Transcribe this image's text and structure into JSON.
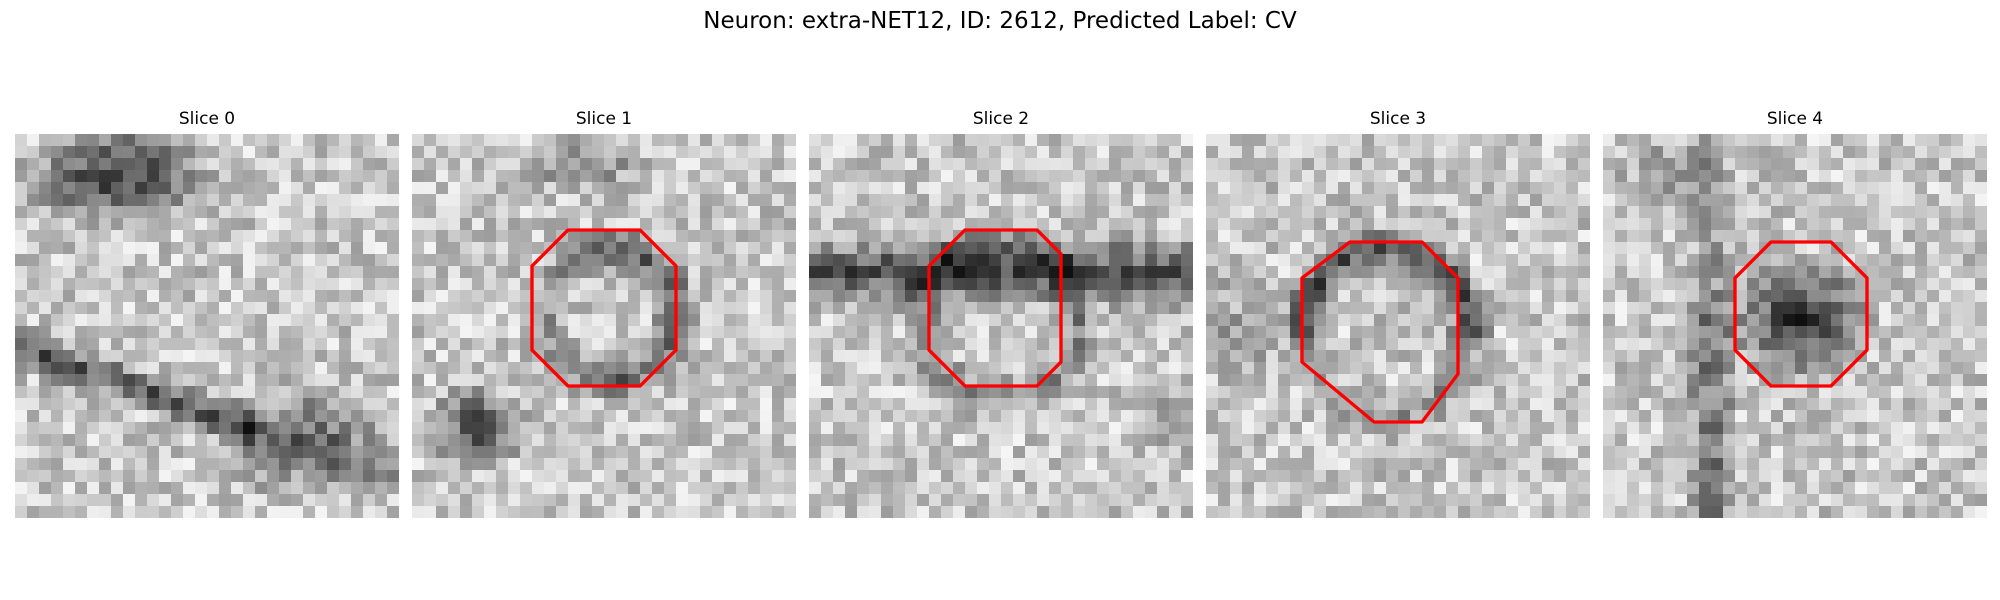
{
  "figure": {
    "title": "Neuron: extra-NET12, ID: 2612, Predicted Label: CV",
    "outline_color": "#ff0000",
    "slices": [
      {
        "label": "Slice 0",
        "outline": null
      },
      {
        "label": "Slice 1",
        "outline": [
          [
            13,
            8
          ],
          [
            19,
            8
          ],
          [
            22,
            11
          ],
          [
            22,
            18
          ],
          [
            19,
            21
          ],
          [
            13,
            21
          ],
          [
            10,
            18
          ],
          [
            10,
            11
          ]
        ]
      },
      {
        "label": "Slice 2",
        "outline": [
          [
            13,
            8
          ],
          [
            19,
            8
          ],
          [
            21,
            10
          ],
          [
            21,
            19
          ],
          [
            19,
            21
          ],
          [
            13,
            21
          ],
          [
            10,
            18
          ],
          [
            10,
            11
          ]
        ]
      },
      {
        "label": "Slice 3",
        "outline": [
          [
            12,
            9
          ],
          [
            18,
            9
          ],
          [
            21,
            12
          ],
          [
            21,
            20
          ],
          [
            18,
            24
          ],
          [
            14,
            24
          ],
          [
            8,
            19
          ],
          [
            8,
            12
          ]
        ]
      },
      {
        "label": "Slice 4",
        "outline": [
          [
            14,
            9
          ],
          [
            19,
            9
          ],
          [
            22,
            12
          ],
          [
            22,
            18
          ],
          [
            19,
            21
          ],
          [
            14,
            21
          ],
          [
            11,
            18
          ],
          [
            11,
            12
          ]
        ]
      }
    ]
  }
}
